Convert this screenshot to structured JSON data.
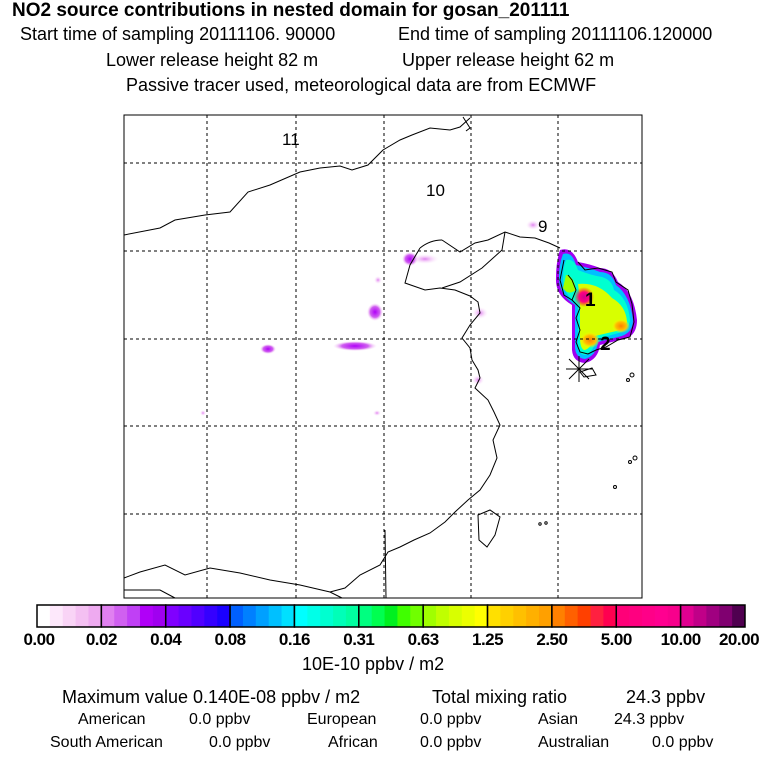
{
  "title": "NO2 source contributions in nested domain for gosan_201111",
  "start_time": "Start time of sampling 20111106. 90000",
  "end_time": "End time of sampling 20111106.120000",
  "lower_height": "Lower release height   82 m",
  "upper_height": "Upper release height   62 m",
  "tracer_note": "Passive tracer used, meteorological data are from ECMWF",
  "map_labels": [
    "11",
    "10",
    "9",
    "1",
    "2"
  ],
  "colorbar": {
    "labels": [
      "0.00",
      "0.02",
      "0.04",
      "0.08",
      "0.16",
      "0.31",
      "0.63",
      "1.25",
      "2.50",
      "5.00",
      "10.00",
      "20.00"
    ],
    "unit": "10E-10 ppbv / m2",
    "colors": [
      [
        "#ffffff",
        "#fde8fb",
        "#f9d4f6",
        "#f4c0f2",
        "#eeaaf0"
      ],
      [
        "#e080f0",
        "#d060f0",
        "#c040f5",
        "#b000f8",
        "#a000f0"
      ],
      [
        "#8000ff",
        "#6a00ff",
        "#5000ff",
        "#3500ff",
        "#1a00ff"
      ],
      [
        "#0060ff",
        "#0080ff",
        "#00a0ff",
        "#00c0ff",
        "#00e0ff"
      ],
      [
        "#00ffff",
        "#00ffe8",
        "#00ffd0",
        "#00ffb8",
        "#00ffa0"
      ],
      [
        "#00ff80",
        "#00ff50",
        "#00f020",
        "#40ff00",
        "#70ff00"
      ],
      [
        "#a0ff00",
        "#c0ff00",
        "#d8ff00",
        "#ecff00",
        "#ffff00"
      ],
      [
        "#ffe000",
        "#ffd000",
        "#ffc000",
        "#ffb000",
        "#ffa000"
      ],
      [
        "#ff8000",
        "#ff6000",
        "#ff4000",
        "#ff2040",
        "#ff0050"
      ],
      [
        "#ff0078",
        "#ff0080",
        "#ff0088",
        "#ff0090",
        "#f8008c"
      ],
      [
        "#e00090",
        "#c00088",
        "#a00080",
        "#800070",
        "#500050"
      ]
    ]
  },
  "stats": {
    "max_label": "Maximum value  0.140E-08 ppbv / m2",
    "total_label": "Total mixing ratio",
    "total_value": "24.3 ppbv",
    "american_label": "American",
    "american_value": "0.0 ppbv",
    "european_label": "European",
    "european_value": "0.0 ppbv",
    "asian_label": "Asian",
    "asian_value": "24.3 ppbv",
    "south_american_label": "South American",
    "south_american_value": "0.0 ppbv",
    "african_label": "African",
    "african_value": "0.0 ppbv",
    "australian_label": "Australian",
    "australian_value": "0.0 ppbv"
  }
}
